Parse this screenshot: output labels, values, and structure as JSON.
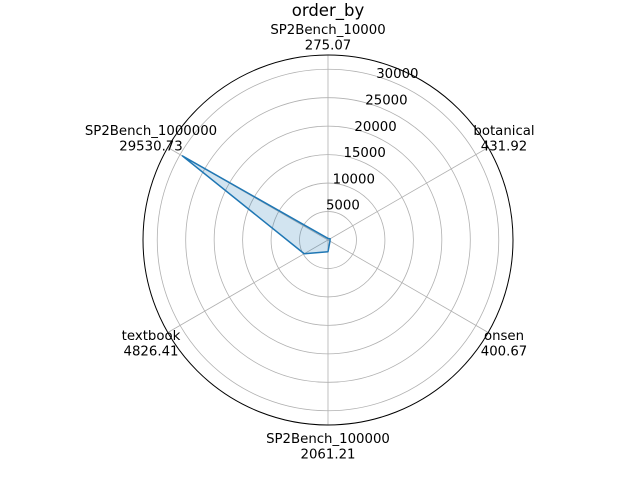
{
  "chart_data": {
    "type": "radar",
    "title": "order_by",
    "categories": [
      "SP2Bench_10000",
      "botanical",
      "onsen",
      "SP2Bench_100000",
      "textbook",
      "SP2Bench_1000000"
    ],
    "value_labels": [
      "275.07",
      "431.92",
      "400.67",
      "2061.21",
      "4826.41",
      "29530.73"
    ],
    "series": [
      {
        "values": [
          275.07,
          431.92,
          400.67,
          2061.21,
          4826.41,
          29530.73
        ],
        "color": "#1f77b4",
        "fill_color": "#1f77b4",
        "fill_opacity": 0.2
      }
    ],
    "radial_ticks": [
      "5000",
      "10000",
      "15000",
      "20000",
      "25000",
      "30000"
    ],
    "radial_tick_values": [
      5000,
      10000,
      15000,
      20000,
      25000,
      30000
    ],
    "rlim": [
      0,
      32500
    ],
    "grid": true
  }
}
